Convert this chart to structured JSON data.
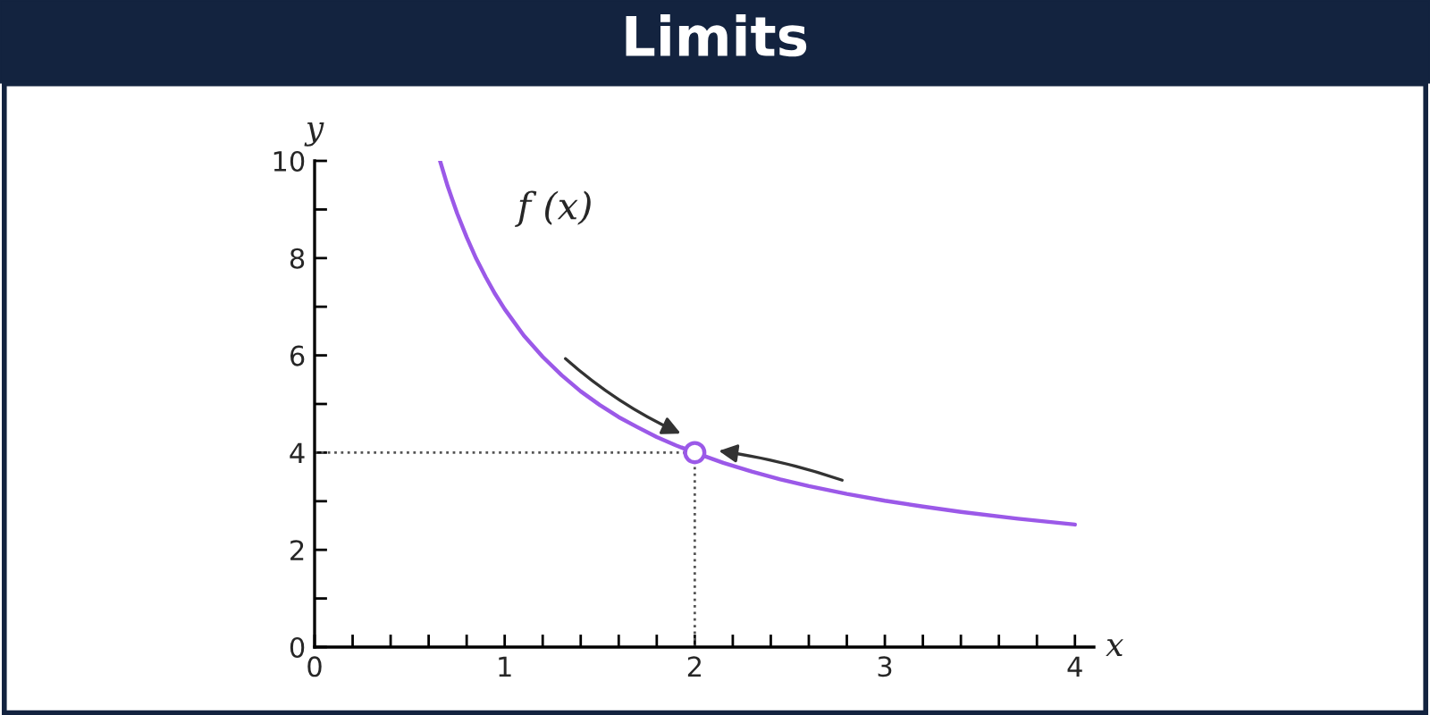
{
  "chart_data": {
    "type": "line",
    "title": "Limits",
    "xlabel": "x",
    "ylabel": "y",
    "annotations": [
      "f (x)"
    ],
    "series": [
      {
        "color": "#9b59e8",
        "x": [
          0.66,
          0.7,
          0.75,
          0.8,
          0.85,
          0.9,
          0.95,
          1.0,
          1.1,
          1.2,
          1.3,
          1.4,
          1.5,
          1.6,
          1.7,
          1.8,
          1.9,
          2.0,
          2.15,
          2.3,
          2.45,
          2.6,
          2.8,
          3.0,
          3.2,
          3.4,
          3.7,
          4.0
        ],
        "values": [
          10.0,
          9.48,
          8.92,
          8.43,
          7.99,
          7.61,
          7.26,
          6.95,
          6.41,
          5.97,
          5.59,
          5.26,
          4.98,
          4.73,
          4.52,
          4.32,
          4.15,
          4.0,
          3.79,
          3.61,
          3.45,
          3.31,
          3.15,
          3.01,
          2.89,
          2.78,
          2.64,
          2.52
        ]
      },
      {
        "type": "scatter",
        "color": "#9b59e8",
        "marker": "circle",
        "x": [
          2
        ],
        "values": [
          4
        ]
      }
    ],
    "ref_lines": [
      {
        "axis": "x",
        "value": 2,
        "line_style": "dotted",
        "color": "#555555"
      },
      {
        "axis": "y",
        "value": 4,
        "line_style": "dotted",
        "color": "#555555"
      }
    ],
    "xlim": [
      0,
      4.1
    ],
    "ylim": [
      0,
      10
    ],
    "xticks": [
      0,
      {
        "value": 0.2,
        "label": null
      },
      {
        "value": 0.4,
        "label": null
      },
      {
        "value": 0.6,
        "label": null
      },
      {
        "value": 0.8,
        "label": null
      },
      1,
      {
        "value": 1.2,
        "label": null
      },
      {
        "value": 1.4,
        "label": null
      },
      {
        "value": 1.6,
        "label": null
      },
      {
        "value": 1.8,
        "label": null
      },
      2,
      {
        "value": 2.2,
        "label": null
      },
      {
        "value": 2.4,
        "label": null
      },
      {
        "value": 2.6,
        "label": null
      },
      {
        "value": 2.8,
        "label": null
      },
      3,
      {
        "value": 3.2,
        "label": null
      },
      {
        "value": 3.4,
        "label": null
      },
      {
        "value": 3.6,
        "label": null
      },
      {
        "value": 3.8,
        "label": null
      },
      4
    ],
    "yticks": [
      0,
      {
        "value": 1,
        "label": null
      },
      2,
      {
        "value": 3,
        "label": null
      },
      4,
      {
        "value": 5,
        "label": null
      },
      6,
      {
        "value": 7,
        "label": null
      },
      8,
      {
        "value": 9,
        "label": null
      },
      10
    ],
    "grid": false,
    "legend": false
  }
}
